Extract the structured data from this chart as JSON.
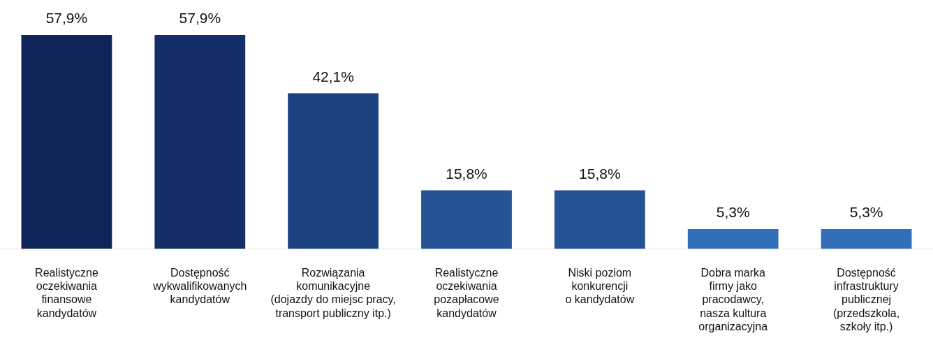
{
  "chart_data": {
    "type": "bar",
    "categories": [
      "Realistyczne\noczekiwania\nfinansowe\nkandydatów",
      "Dostępność\nwykwalifikowanych\nkandydatów",
      "Rozwiązania\nkomunikacyjne\n(dojazdy do miejsc pracy,\ntransport publiczny itp.)",
      "Realistyczne\noczekiwania\npozapłacowe\nkandydatów",
      "Niski poziom\nkonkurencji\no kandydatów",
      "Dobra marka\nfirmy jako\npracodawcy,\nnasza kultura\norganizacyjna",
      "Dostępność\ninfrastruktury\npublicznej\n(przedszkola,\nszkoły itp.)"
    ],
    "values": [
      57.9,
      57.9,
      42.1,
      15.8,
      15.8,
      5.3,
      5.3
    ],
    "value_labels": [
      "57,9%",
      "57,9%",
      "42,1%",
      "15,8%",
      "15,8%",
      "5,3%",
      "5,3%"
    ],
    "colors": [
      "#10245a",
      "#142f68",
      "#1c4180",
      "#255396",
      "#255396",
      "#326fb8",
      "#326fb8"
    ],
    "ylim": [
      0,
      57.9
    ],
    "tick_labels": "x",
    "grid": false,
    "legend": false
  }
}
